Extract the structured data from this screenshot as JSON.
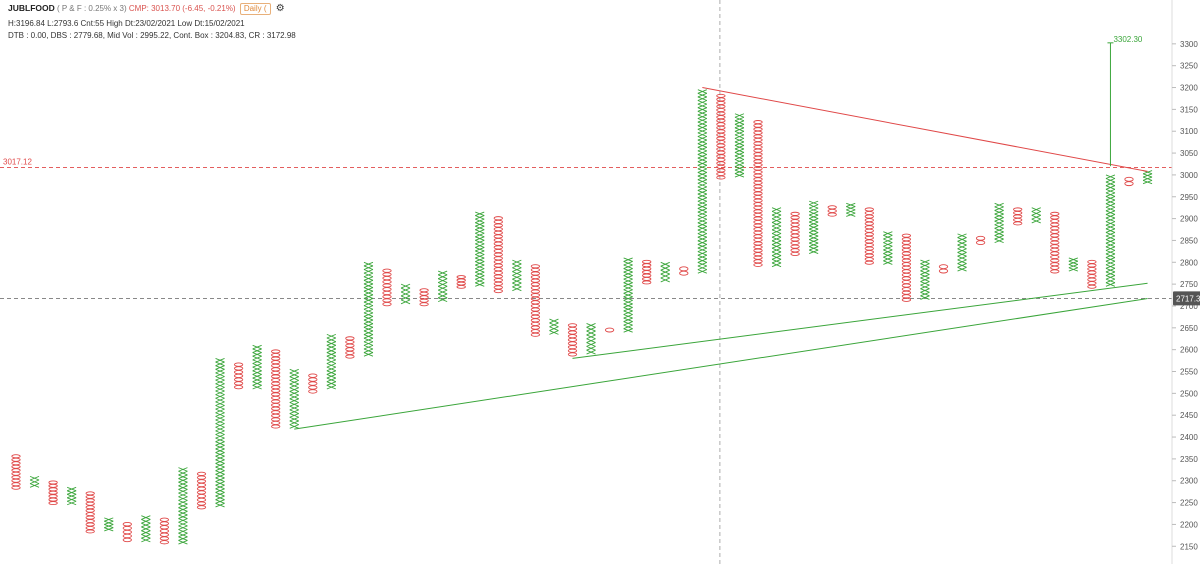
{
  "header": {
    "symbol": "JUBLFOOD",
    "params": "( P & F : 0.25% x 3)",
    "cmp": "CMP: 3013.70 (-6.45, -0.21%)",
    "timeframe": "Daily (",
    "line2": "H:3196.84 L:2793.6 Cnt:55 High Dt:23/02/2021 Low Dt:15/02/2021",
    "line3": "DTB : 0.00, DBS : 2779.68, Mid Vol : 2995.22, Cont. Box : 3204.83, CR : 3172.98"
  },
  "chart_data": {
    "type": "point-and-figure",
    "ylim": [
      2130,
      3350
    ],
    "y_ticks": [
      2150,
      2200,
      2250,
      2300,
      2350,
      2400,
      2450,
      2500,
      2550,
      2600,
      2650,
      2700,
      2750,
      2800,
      2850,
      2900,
      2950,
      3000,
      3050,
      3100,
      3150,
      3200,
      3250,
      3300
    ],
    "y_tick_labels": [
      "2150",
      "2200",
      "2250",
      "2300",
      "2350",
      "2400",
      "2450",
      "2500",
      "2550",
      "2600",
      "2650",
      "2700",
      "2750",
      "2800",
      "2850",
      "2900",
      "2950",
      "3000",
      "3050",
      "3100",
      "3150",
      "3200",
      "3250",
      "3300"
    ],
    "columns": [
      {
        "kind": "O",
        "high": 2360,
        "low": 2280
      },
      {
        "kind": "X",
        "high": 2310,
        "low": 2285
      },
      {
        "kind": "O",
        "high": 2300,
        "low": 2245
      },
      {
        "kind": "X",
        "high": 2285,
        "low": 2245
      },
      {
        "kind": "O",
        "high": 2275,
        "low": 2180
      },
      {
        "kind": "X",
        "high": 2215,
        "low": 2185
      },
      {
        "kind": "O",
        "high": 2205,
        "low": 2160
      },
      {
        "kind": "X",
        "high": 2220,
        "low": 2160
      },
      {
        "kind": "O",
        "high": 2215,
        "low": 2155
      },
      {
        "kind": "X",
        "high": 2330,
        "low": 2155
      },
      {
        "kind": "O",
        "high": 2320,
        "low": 2235
      },
      {
        "kind": "X",
        "high": 2580,
        "low": 2240
      },
      {
        "kind": "O",
        "high": 2570,
        "low": 2510
      },
      {
        "kind": "X",
        "high": 2610,
        "low": 2510
      },
      {
        "kind": "O",
        "high": 2600,
        "low": 2420
      },
      {
        "kind": "X",
        "high": 2555,
        "low": 2420
      },
      {
        "kind": "O",
        "high": 2545,
        "low": 2500
      },
      {
        "kind": "X",
        "high": 2635,
        "low": 2510
      },
      {
        "kind": "O",
        "high": 2630,
        "low": 2580
      },
      {
        "kind": "X",
        "high": 2800,
        "low": 2585
      },
      {
        "kind": "O",
        "high": 2785,
        "low": 2700
      },
      {
        "kind": "X",
        "high": 2750,
        "low": 2705
      },
      {
        "kind": "O",
        "high": 2740,
        "low": 2700
      },
      {
        "kind": "X",
        "high": 2780,
        "low": 2710
      },
      {
        "kind": "O",
        "high": 2770,
        "low": 2740
      },
      {
        "kind": "X",
        "high": 2915,
        "low": 2745
      },
      {
        "kind": "O",
        "high": 2905,
        "low": 2730
      },
      {
        "kind": "X",
        "high": 2805,
        "low": 2735
      },
      {
        "kind": "O",
        "high": 2795,
        "low": 2630
      },
      {
        "kind": "X",
        "high": 2670,
        "low": 2635
      },
      {
        "kind": "O",
        "high": 2660,
        "low": 2585
      },
      {
        "kind": "X",
        "high": 2660,
        "low": 2590
      },
      {
        "kind": "O",
        "high": 2650,
        "low": 2640
      },
      {
        "kind": "X",
        "high": 2810,
        "low": 2640
      },
      {
        "kind": "O",
        "high": 2805,
        "low": 2750
      },
      {
        "kind": "X",
        "high": 2800,
        "low": 2755
      },
      {
        "kind": "O",
        "high": 2790,
        "low": 2770
      },
      {
        "kind": "X",
        "high": 3195,
        "low": 2775
      },
      {
        "kind": "O",
        "high": 3185,
        "low": 2990
      },
      {
        "kind": "X",
        "high": 3140,
        "low": 2995
      },
      {
        "kind": "O",
        "high": 3125,
        "low": 2790
      },
      {
        "kind": "X",
        "high": 2925,
        "low": 2790
      },
      {
        "kind": "O",
        "high": 2915,
        "low": 2815
      },
      {
        "kind": "X",
        "high": 2940,
        "low": 2820
      },
      {
        "kind": "O",
        "high": 2930,
        "low": 2905
      },
      {
        "kind": "X",
        "high": 2935,
        "low": 2905
      },
      {
        "kind": "O",
        "high": 2925,
        "low": 2795
      },
      {
        "kind": "X",
        "high": 2870,
        "low": 2795
      },
      {
        "kind": "O",
        "high": 2865,
        "low": 2710
      },
      {
        "kind": "X",
        "high": 2805,
        "low": 2715
      },
      {
        "kind": "O",
        "high": 2795,
        "low": 2775
      },
      {
        "kind": "X",
        "high": 2865,
        "low": 2780
      },
      {
        "kind": "O",
        "high": 2860,
        "low": 2840
      },
      {
        "kind": "X",
        "high": 2935,
        "low": 2845
      },
      {
        "kind": "O",
        "high": 2925,
        "low": 2885
      },
      {
        "kind": "X",
        "high": 2925,
        "low": 2890
      },
      {
        "kind": "O",
        "high": 2915,
        "low": 2775
      },
      {
        "kind": "X",
        "high": 2810,
        "low": 2780
      },
      {
        "kind": "O",
        "high": 2805,
        "low": 2740
      },
      {
        "kind": "X",
        "high": 3000,
        "low": 2745
      },
      {
        "kind": "O",
        "high": 2995,
        "low": 2975
      },
      {
        "kind": "X",
        "high": 3010,
        "low": 2980
      }
    ],
    "trend_lines": [
      {
        "color": "red",
        "from": {
          "col": 37,
          "value": 3200
        },
        "to": {
          "col": 61,
          "value": 3008
        }
      },
      {
        "color": "green",
        "from": {
          "col": 15,
          "value": 2418
        },
        "to": {
          "col": 61,
          "value": 2717
        }
      },
      {
        "color": "green",
        "from": {
          "col": 30,
          "value": 2580
        },
        "to": {
          "col": 61,
          "value": 2752
        }
      }
    ],
    "target": {
      "label": "3302.30",
      "value": 3302.3,
      "from_value": 3020,
      "col": 59
    },
    "level_lines": [
      {
        "label": "3017.12",
        "value": 3017.12,
        "color": "red",
        "side": "left"
      },
      {
        "label": "2717.31",
        "value": 2717.31,
        "color": "gray",
        "side": "right"
      }
    ],
    "crosshair": {
      "col": 38
    },
    "grid": false,
    "colors": {
      "x": "#3aa53a",
      "o": "#e04848",
      "red_line": "#e04848",
      "green_line": "#3aa53a"
    }
  }
}
